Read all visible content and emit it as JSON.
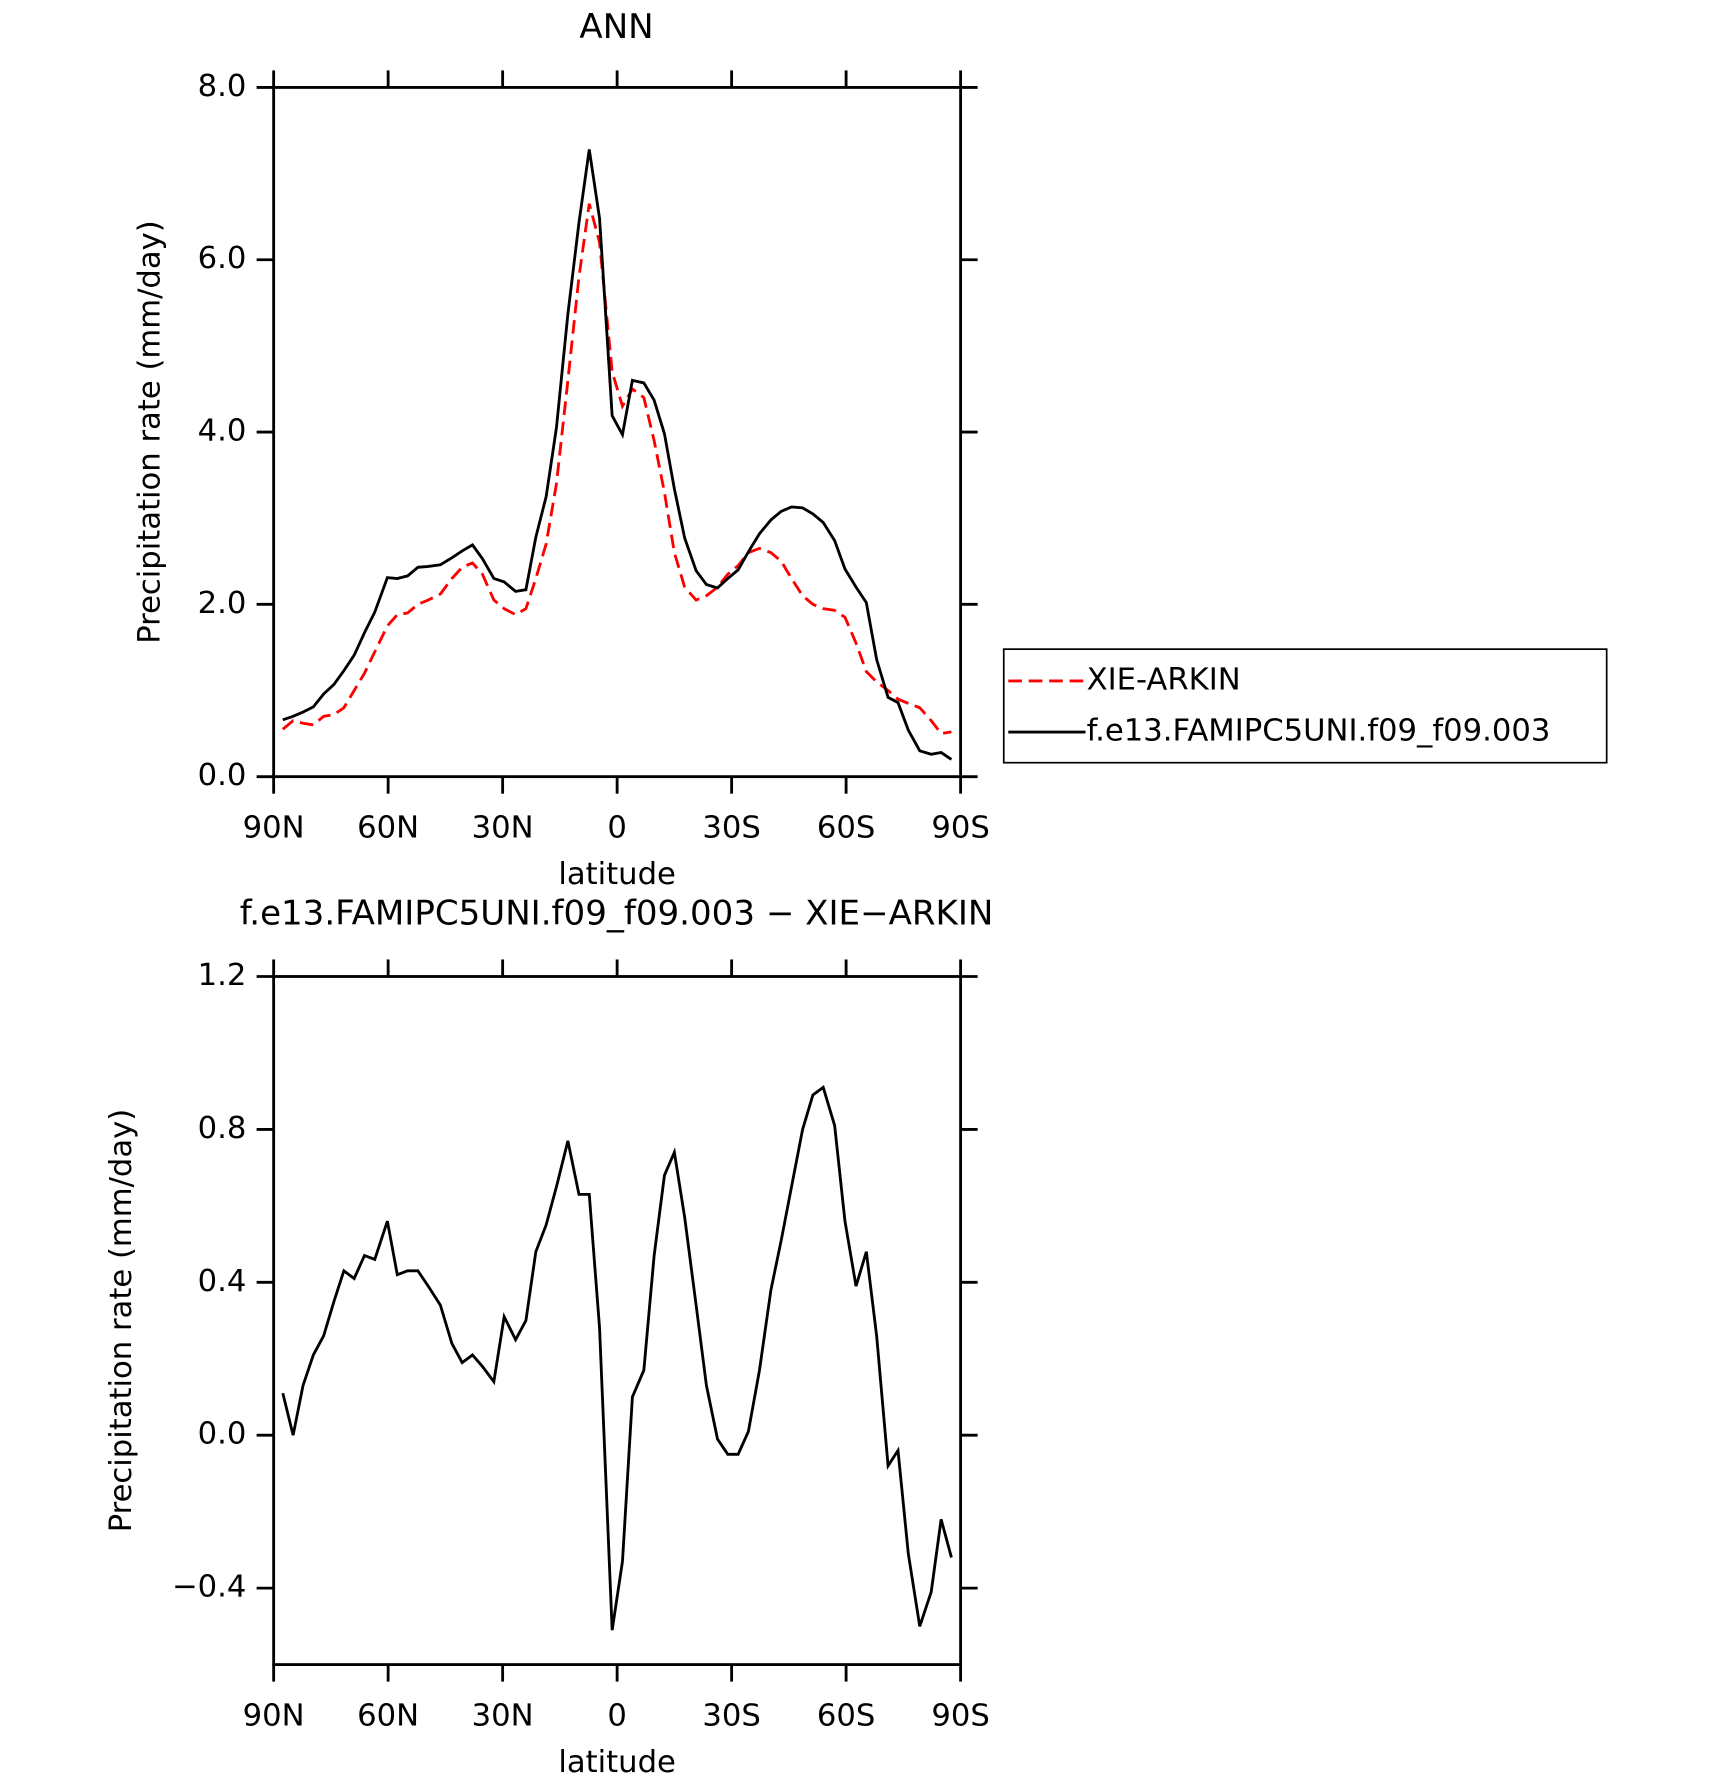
{
  "chart_data": [
    {
      "type": "line",
      "title": "ANN",
      "x_label": "latitude",
      "y_label": "Precipitation rate (mm/day)",
      "x": [
        87.6,
        84.9,
        82.3,
        79.6,
        76.9,
        74.2,
        71.6,
        68.9,
        66.2,
        63.5,
        60.2,
        57.6,
        54.9,
        52.2,
        49.5,
        46.3,
        43.3,
        40.6,
        37.9,
        35.3,
        32.3,
        29.6,
        26.6,
        23.9,
        21.3,
        18.6,
        15.9,
        12.9,
        10.0,
        7.3,
        4.6,
        1.3,
        -1.4,
        -4.0,
        -7.0,
        -9.7,
        -12.4,
        -15.0,
        -17.7,
        -20.7,
        -23.4,
        -26.3,
        -29.0,
        -31.7,
        -34.4,
        -37.3,
        -40.3,
        -43.0,
        -45.7,
        -48.6,
        -51.3,
        -54.0,
        -57.0,
        -59.7,
        -62.6,
        -65.3,
        -68.0,
        -71.0,
        -73.6,
        -76.3,
        -79.3,
        -82.3,
        -84.9,
        -87.6
      ],
      "series": [
        {
          "name": "XIE-ARKIN",
          "color": "#ff0000",
          "style": "dashed",
          "values": [
            0.55,
            0.65,
            0.62,
            0.6,
            0.7,
            0.72,
            0.8,
            1.0,
            1.2,
            1.45,
            1.75,
            1.88,
            1.9,
            2.0,
            2.05,
            2.12,
            2.3,
            2.43,
            2.48,
            2.35,
            2.05,
            1.95,
            1.88,
            1.95,
            2.3,
            2.7,
            3.4,
            4.6,
            5.8,
            6.65,
            6.2,
            4.7,
            4.3,
            4.5,
            4.4,
            3.9,
            3.3,
            2.6,
            2.2,
            2.05,
            2.1,
            2.2,
            2.35,
            2.45,
            2.6,
            2.65,
            2.6,
            2.5,
            2.3,
            2.1,
            2.0,
            1.95,
            1.93,
            1.85,
            1.55,
            1.22,
            1.1,
            1.0,
            0.9,
            0.85,
            0.8,
            0.65,
            0.5,
            0.52
          ]
        },
        {
          "name": "f.e13.FAMIPC5UNI.f09_f09.003",
          "color": "#000000",
          "style": "solid",
          "values": [
            0.66,
            0.7,
            0.75,
            0.81,
            0.96,
            1.07,
            1.23,
            1.41,
            1.67,
            1.91,
            2.31,
            2.3,
            2.33,
            2.43,
            2.44,
            2.46,
            2.54,
            2.62,
            2.69,
            2.53,
            2.3,
            2.26,
            2.15,
            2.17,
            2.78,
            3.25,
            4.05,
            5.37,
            6.43,
            7.28,
            6.48,
            4.19,
            3.97,
            4.6,
            4.57,
            4.37,
            3.98,
            3.34,
            2.77,
            2.39,
            2.23,
            2.19,
            2.3,
            2.4,
            2.61,
            2.82,
            2.98,
            3.08,
            3.13,
            3.12,
            3.05,
            2.95,
            2.74,
            2.41,
            2.2,
            2.02,
            1.36,
            0.92,
            0.86,
            0.54,
            0.3,
            0.26,
            0.28,
            0.2
          ]
        }
      ],
      "xlim": [
        90,
        -90
      ],
      "xticks": [
        {
          "value": 90,
          "label": "90N"
        },
        {
          "value": 60,
          "label": "60N"
        },
        {
          "value": 30,
          "label": "30N"
        },
        0,
        {
          "value": -30,
          "label": "30S"
        },
        {
          "value": -60,
          "label": "60S"
        },
        {
          "value": -90,
          "label": "90S"
        }
      ],
      "ylim": [
        0,
        8
      ],
      "yticks": [
        {
          "value": 0,
          "label": "0.0"
        },
        {
          "value": 2,
          "label": "2.0"
        },
        {
          "value": 4,
          "label": "4.0"
        },
        {
          "value": 6,
          "label": "6.0"
        },
        {
          "value": 8,
          "label": "8.0"
        }
      ],
      "legend": "right"
    },
    {
      "type": "line",
      "title": "f.e13.FAMIPC5UNI.f09_f09.003 − XIE−ARKIN",
      "x_label": "latitude",
      "y_label": "Precipitation rate (mm/day)",
      "x": [
        87.6,
        84.9,
        82.3,
        79.6,
        76.9,
        74.2,
        71.6,
        68.9,
        66.2,
        63.5,
        60.2,
        57.6,
        54.9,
        52.2,
        49.5,
        46.3,
        43.3,
        40.6,
        37.9,
        35.3,
        32.3,
        29.6,
        26.6,
        23.9,
        21.3,
        18.6,
        15.9,
        12.9,
        10.0,
        7.3,
        4.6,
        1.3,
        -1.4,
        -4.0,
        -7.0,
        -9.7,
        -12.4,
        -15.0,
        -17.7,
        -20.7,
        -23.4,
        -26.3,
        -29.0,
        -31.7,
        -34.4,
        -37.3,
        -40.3,
        -43.0,
        -45.7,
        -48.6,
        -51.3,
        -54.0,
        -57.0,
        -59.7,
        -62.6,
        -65.3,
        -68.0,
        -71.0,
        -73.6,
        -76.3,
        -79.3,
        -82.3,
        -84.9,
        -87.6
      ],
      "values": [
        0.11,
        0.0,
        0.13,
        0.21,
        0.26,
        0.35,
        0.43,
        0.41,
        0.47,
        0.46,
        0.56,
        0.42,
        0.43,
        0.43,
        0.39,
        0.34,
        0.24,
        0.19,
        0.21,
        0.18,
        0.14,
        0.31,
        0.25,
        0.3,
        0.48,
        0.55,
        0.65,
        0.77,
        0.63,
        0.63,
        0.28,
        -0.51,
        -0.33,
        0.1,
        0.17,
        0.47,
        0.68,
        0.74,
        0.57,
        0.34,
        0.13,
        -0.01,
        -0.05,
        -0.05,
        0.01,
        0.17,
        0.38,
        0.51,
        0.65,
        0.8,
        0.89,
        0.91,
        0.81,
        0.56,
        0.39,
        0.48,
        0.26,
        -0.08,
        -0.04,
        -0.31,
        -0.5,
        -0.41,
        -0.22,
        -0.32
      ],
      "color": "#000000",
      "xlim": [
        90,
        -90
      ],
      "xticks": [
        {
          "value": 90,
          "label": "90N"
        },
        {
          "value": 60,
          "label": "60N"
        },
        {
          "value": 30,
          "label": "30N"
        },
        0,
        {
          "value": -30,
          "label": "30S"
        },
        {
          "value": -60,
          "label": "60S"
        },
        {
          "value": -90,
          "label": "90S"
        }
      ],
      "ylim": [
        -0.6,
        1.2
      ],
      "yticks": [
        {
          "value": -0.4,
          "label": "−0.4"
        },
        {
          "value": 0,
          "label": "0.0"
        },
        {
          "value": 0.4,
          "label": "0.4"
        },
        {
          "value": 0.8,
          "label": "0.8"
        },
        {
          "value": 1.2,
          "label": "1.2"
        }
      ]
    }
  ]
}
